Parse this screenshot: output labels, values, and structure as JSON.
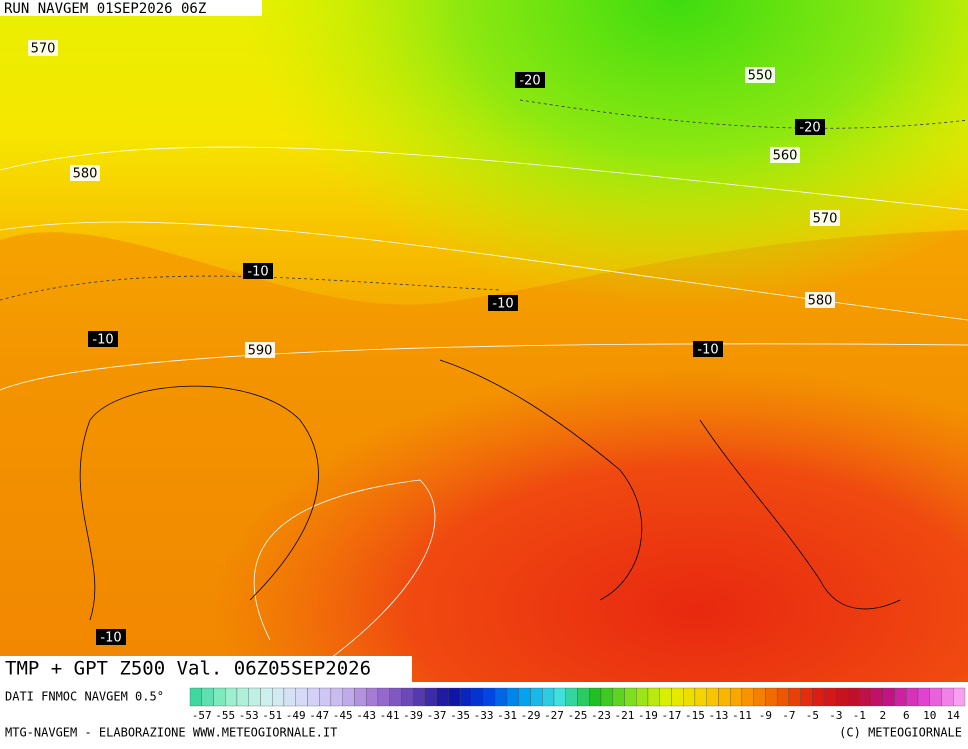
{
  "header": {
    "run": "RUN NAVGEM 01SEP2026 06Z"
  },
  "map": {
    "labels": [
      {
        "text": "570",
        "kind": "gpt"
      },
      {
        "text": "-20",
        "kind": "tmp"
      },
      {
        "text": "550",
        "kind": "gpt"
      },
      {
        "text": "-20",
        "kind": "tmp"
      },
      {
        "text": "560",
        "kind": "gpt"
      },
      {
        "text": "580",
        "kind": "gpt"
      },
      {
        "text": "570",
        "kind": "gpt"
      },
      {
        "text": "-10",
        "kind": "tmp"
      },
      {
        "text": "-10",
        "kind": "tmp"
      },
      {
        "text": "580",
        "kind": "gpt"
      },
      {
        "text": "-10",
        "kind": "tmp"
      },
      {
        "text": "590",
        "kind": "gpt"
      },
      {
        "text": "-10",
        "kind": "tmp"
      },
      {
        "text": "-10",
        "kind": "tmp"
      }
    ]
  },
  "footer": {
    "title": "TMP + GPT Z500 Val. 06Z05SEP2026",
    "source": "DATI FNMOC NAVGEM 0.5°",
    "credit": "MTG-NAVGEM - ELABORAZIONE WWW.METEOGIORNALE.IT",
    "copyright": "(C) METEOGIORNALE",
    "scale": [
      -57,
      -55,
      -53,
      -51,
      -49,
      -47,
      -45,
      -43,
      -41,
      -39,
      -37,
      -35,
      -33,
      -31,
      -29,
      -27,
      -25,
      -23,
      -21,
      -19,
      -17,
      -15,
      -13,
      -11,
      -9,
      -7,
      -5,
      -3,
      -1,
      2,
      6,
      10,
      14
    ]
  }
}
